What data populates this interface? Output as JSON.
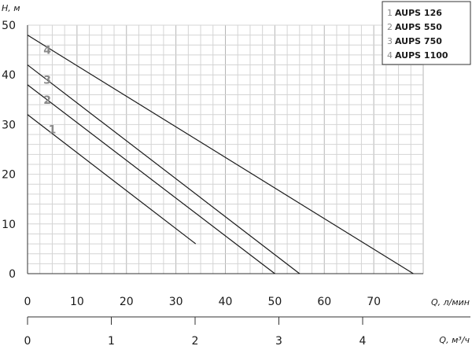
{
  "chart_data": {
    "type": "line",
    "title": "",
    "xlabel": "Q, л/мин",
    "ylabel": "H, м",
    "x2label": "Q, м³/ч",
    "xlim": [
      0,
      80
    ],
    "ylim": [
      0,
      50
    ],
    "x_ticks": [
      0,
      10,
      20,
      30,
      40,
      50,
      60,
      70
    ],
    "y_ticks": [
      0,
      10,
      20,
      30,
      40,
      50
    ],
    "x2_ticks": [
      0,
      1,
      2,
      3,
      4
    ],
    "grid": true,
    "legend": "top-right",
    "series": [
      {
        "name": "AUPS 126",
        "number": "1",
        "x": [
          0,
          34
        ],
        "y": [
          32,
          6
        ]
      },
      {
        "name": "AUPS 550",
        "number": "2",
        "x": [
          0,
          50
        ],
        "y": [
          38,
          0
        ]
      },
      {
        "name": "AUPS 750",
        "number": "3",
        "x": [
          0,
          55
        ],
        "y": [
          42,
          0
        ]
      },
      {
        "name": "AUPS 1100",
        "number": "4",
        "x": [
          0,
          78
        ],
        "y": [
          48,
          0
        ]
      }
    ],
    "curve_labels": [
      {
        "text": "1",
        "x": 5,
        "y": 29
      },
      {
        "text": "2",
        "x": 4,
        "y": 35
      },
      {
        "text": "3",
        "x": 4,
        "y": 39
      },
      {
        "text": "4",
        "x": 4,
        "y": 45
      }
    ]
  }
}
